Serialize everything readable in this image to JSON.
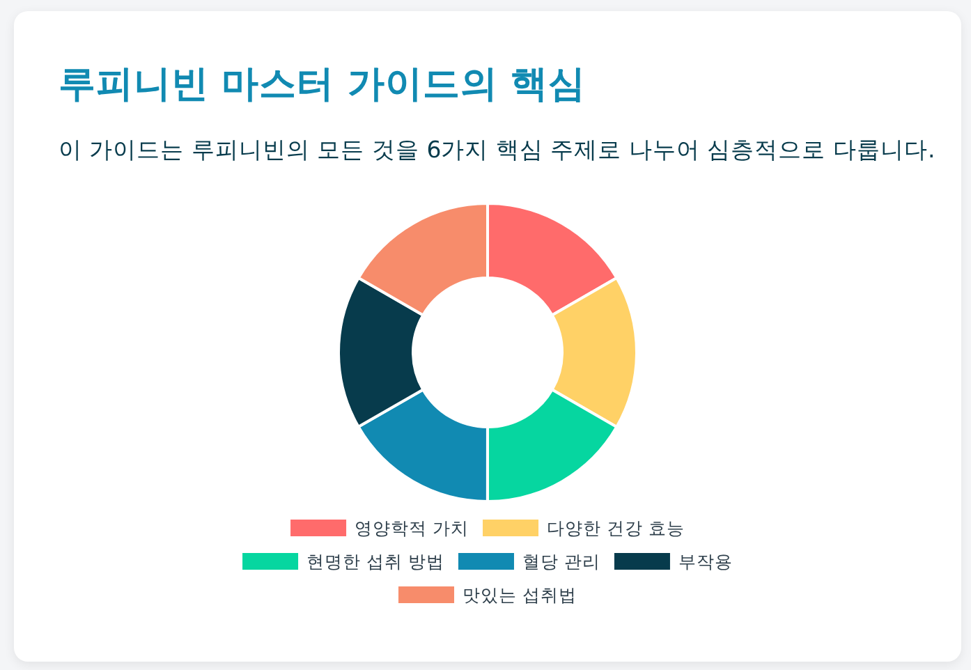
{
  "chart_data": {
    "type": "donut",
    "title": "루피니빈 마스터 가이드의 핵심",
    "subtitle": "이 가이드는 루피니빈의 모든 것을 6가지 핵심 주제로 나누어 심층적으로 다룹니다.",
    "categories": [
      "영양학적 가치",
      "다양한 건강 효능",
      "현명한 섭취 방법",
      "혈당 관리",
      "부작용",
      "맛있는 섭취법"
    ],
    "values": [
      16.67,
      16.67,
      16.67,
      16.67,
      16.66,
      16.66
    ],
    "colors": [
      "#ff6b6b",
      "#ffd166",
      "#06d6a0",
      "#118ab2",
      "#073b4c",
      "#f78c6b"
    ],
    "legend": "bottom"
  }
}
